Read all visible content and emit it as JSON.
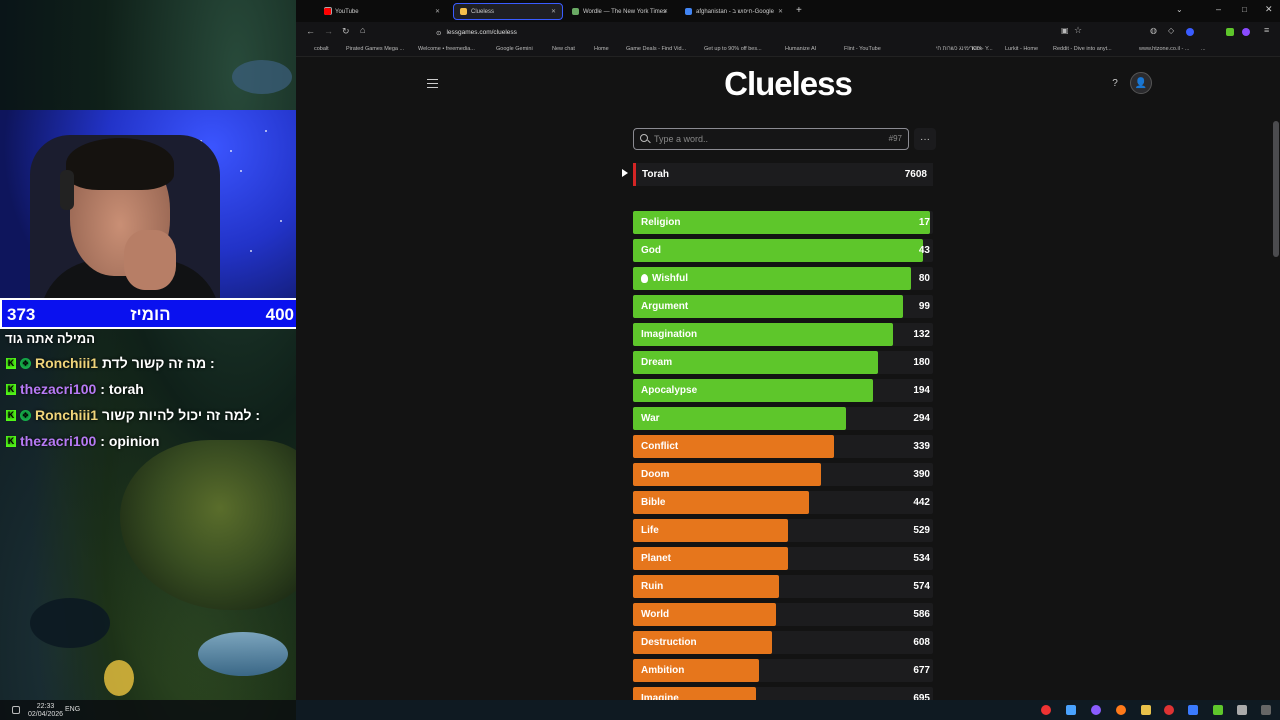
{
  "stream": {
    "score_left": "373",
    "score_center": "הומיז",
    "score_right": "400",
    "hint": "המילה אתה גוד",
    "chat": [
      {
        "user": "Ronchiii1",
        "msg": "מה זה קשור לדת :",
        "color": "yellow",
        "gift": true
      },
      {
        "user": "thezacri100",
        "msg": ": torah",
        "color": "purple",
        "gift": false
      },
      {
        "user": "Ronchiii1",
        "msg": "למה זה יכול להיות קשור :",
        "color": "yellow",
        "gift": true
      },
      {
        "user": "thezacri100",
        "msg": ": opinion",
        "color": "purple",
        "gift": false
      }
    ],
    "time": "22:33",
    "date": "02/04/2026",
    "lang": "ENG"
  },
  "browser": {
    "tabs": [
      {
        "title": "YouTube",
        "color": "#ff0000"
      },
      {
        "title": "Clueless",
        "color": "#f5c04a",
        "active": true
      },
      {
        "title": "Wordle — The New York Times",
        "color": "#6aaa64"
      },
      {
        "title": "afghanistan - חיפוש ב-Google",
        "color": "#4285f4"
      }
    ],
    "url": "lessgames.com/clueless",
    "bookmarks": [
      "cobalt",
      "Pirated Games Mega ...",
      "Welcome • freemedia...",
      "Google Gemini",
      "New chat",
      "Home",
      "Game Deals - Find Vid...",
      "Get up to 90% off bes...",
      "Humanize AI",
      "Flint - YouTube",
      "סטרימינג כשרות חי - Y...",
      "Kick",
      "Lurkit - Home",
      "Reddit - Dive into anyt...",
      "www.htzone.co.il - ...",
      "..."
    ]
  },
  "game": {
    "logo": "Clueless",
    "search_placeholder": "Type a word..",
    "game_number": "#97",
    "help": "?",
    "last_guess": {
      "word": "Torah",
      "rank": "7608"
    },
    "guesses": [
      {
        "word": "Religion",
        "rank": "17",
        "pct": 0.99,
        "color": "green"
      },
      {
        "word": "God",
        "rank": "43",
        "pct": 0.965,
        "color": "green"
      },
      {
        "word": "Wishful",
        "rank": "80",
        "pct": 0.925,
        "color": "green",
        "hint": true
      },
      {
        "word": "Argument",
        "rank": "99",
        "pct": 0.9,
        "color": "green"
      },
      {
        "word": "Imagination",
        "rank": "132",
        "pct": 0.865,
        "color": "green"
      },
      {
        "word": "Dream",
        "rank": "180",
        "pct": 0.815,
        "color": "green"
      },
      {
        "word": "Apocalypse",
        "rank": "194",
        "pct": 0.8,
        "color": "green"
      },
      {
        "word": "War",
        "rank": "294",
        "pct": 0.71,
        "color": "green"
      },
      {
        "word": "Conflict",
        "rank": "339",
        "pct": 0.67,
        "color": "orange"
      },
      {
        "word": "Doom",
        "rank": "390",
        "pct": 0.625,
        "color": "orange"
      },
      {
        "word": "Bible",
        "rank": "442",
        "pct": 0.585,
        "color": "orange"
      },
      {
        "word": "Life",
        "rank": "529",
        "pct": 0.518,
        "color": "orange"
      },
      {
        "word": "Planet",
        "rank": "534",
        "pct": 0.515,
        "color": "orange"
      },
      {
        "word": "Ruin",
        "rank": "574",
        "pct": 0.485,
        "color": "orange"
      },
      {
        "word": "World",
        "rank": "586",
        "pct": 0.477,
        "color": "orange"
      },
      {
        "word": "Destruction",
        "rank": "608",
        "pct": 0.462,
        "color": "orange"
      },
      {
        "word": "Ambition",
        "rank": "677",
        "pct": 0.42,
        "color": "orange"
      },
      {
        "word": "Imagine",
        "rank": "695",
        "pct": 0.41,
        "color": "orange"
      }
    ],
    "colors": {
      "green": "#5ec62b",
      "orange": "#e6761c",
      "red": "#d42525"
    }
  }
}
